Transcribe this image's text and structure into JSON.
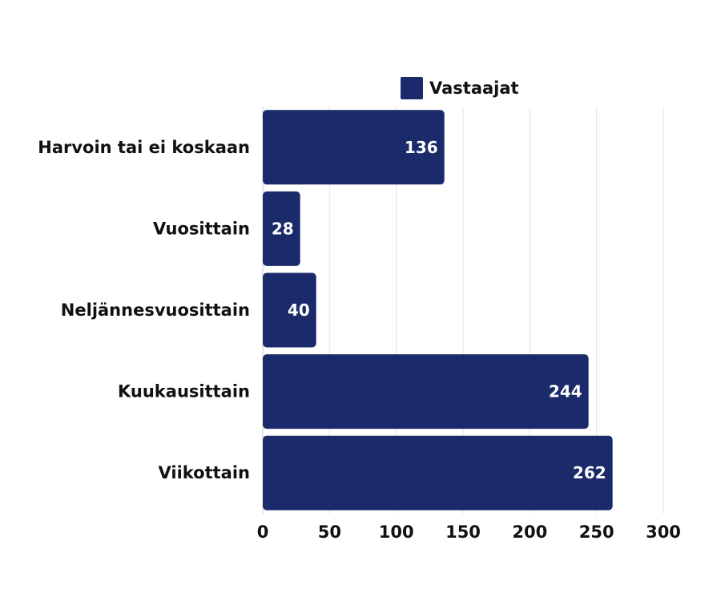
{
  "chart_data": {
    "type": "bar",
    "orientation": "horizontal",
    "categories": [
      "Harvoin tai ei koskaan",
      "Vuosittain",
      "Neljännesvuosittain",
      "Kuukausittain",
      "Viikottain"
    ],
    "series": [
      {
        "name": "Vastaajat",
        "values": [
          136,
          28,
          40,
          244,
          262
        ]
      }
    ],
    "xlim": [
      0,
      300
    ],
    "xticks": [
      "0",
      "50",
      "100",
      "150",
      "200",
      "250",
      "300"
    ],
    "grid": "vertical",
    "legend_position": "top",
    "data_labels": true,
    "colors": {
      "bar": "#1b2a6b",
      "grid": "#e3e3e3",
      "label": "#ffffff",
      "text": "#111111"
    }
  }
}
